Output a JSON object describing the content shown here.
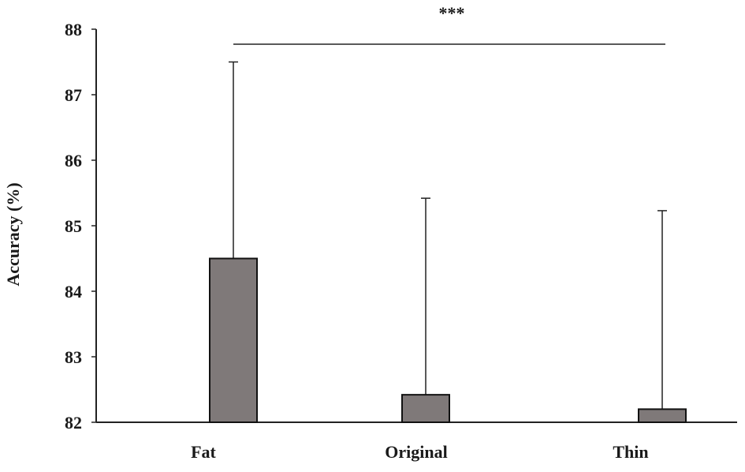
{
  "chart_data": {
    "type": "bar",
    "title": "",
    "xlabel": "",
    "ylabel": "Accuracy (%)",
    "ylim": [
      82,
      88
    ],
    "yticks": [
      82,
      83,
      84,
      85,
      86,
      87,
      88
    ],
    "categories": [
      "Fat",
      "Original",
      "Thin"
    ],
    "series": [
      {
        "values": [
          84.5,
          82.42,
          82.2
        ],
        "error_upper": [
          87.5,
          85.42,
          85.23
        ]
      }
    ],
    "bar_color": "#7f7979",
    "bar_edge_color": "#111111",
    "grid": false,
    "significance": {
      "from": "Fat",
      "to": "Thin",
      "label": "***"
    }
  }
}
